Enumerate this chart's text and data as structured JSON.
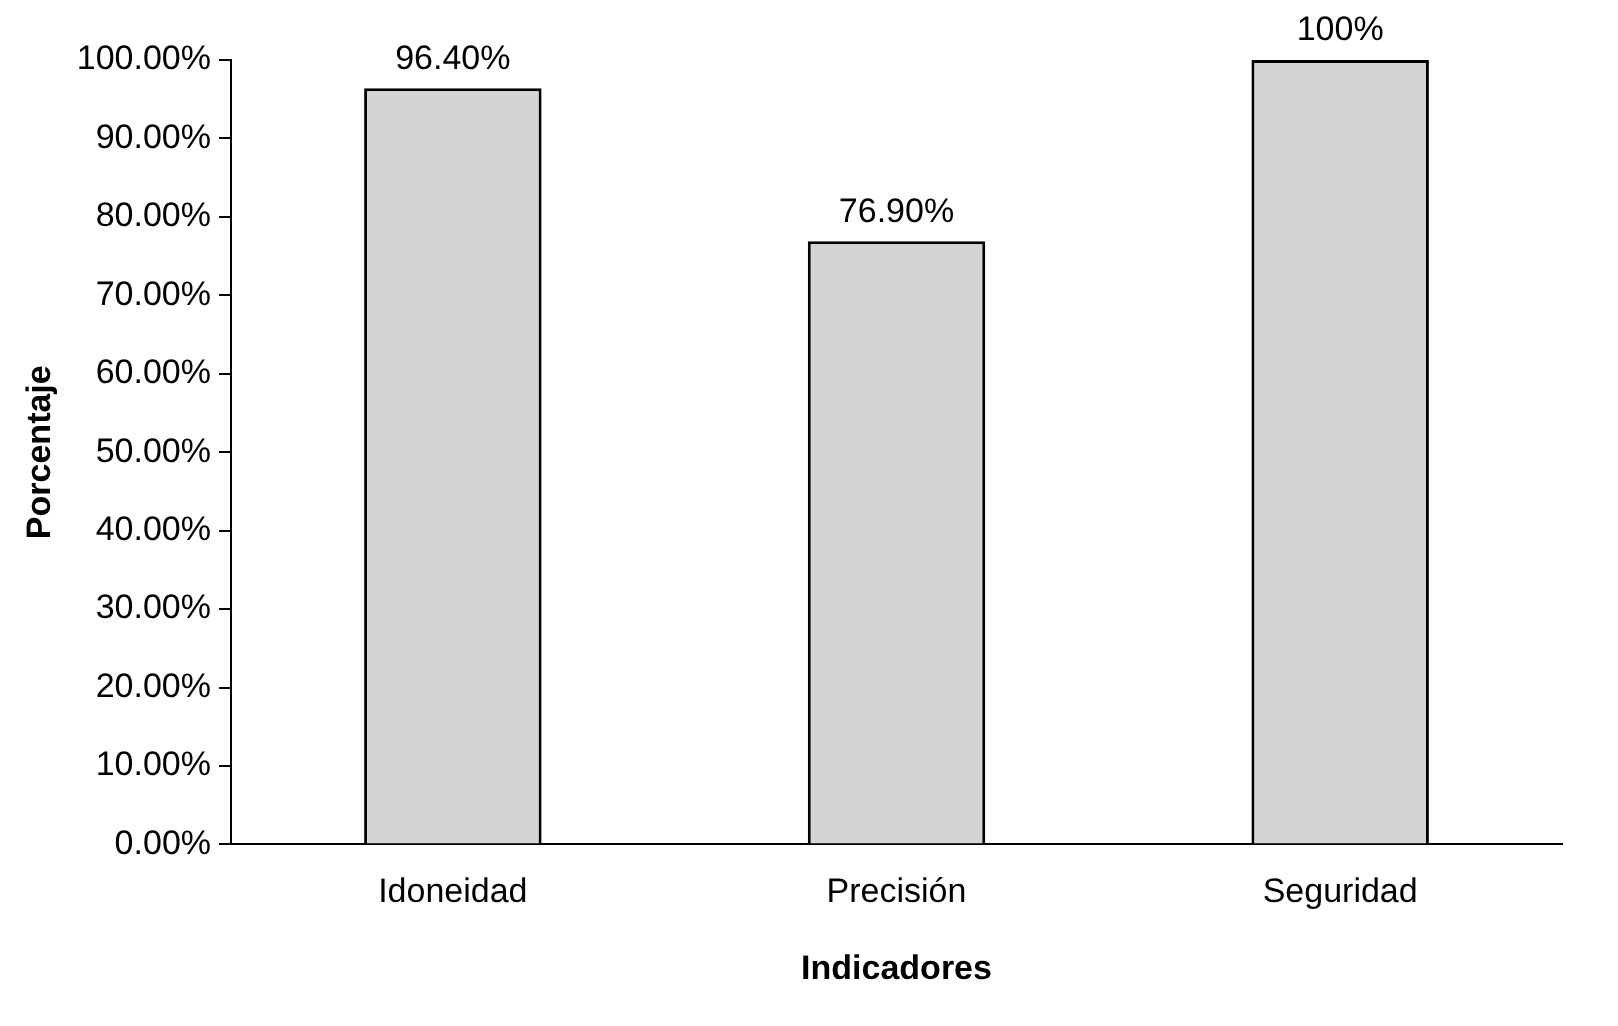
{
  "chart_data": {
    "type": "bar",
    "xlabel": "Indicadores",
    "ylabel": "Porcentaje",
    "categories": [
      "Idoneidad",
      "Precisión",
      "Seguridad"
    ],
    "values": [
      96.4,
      76.9,
      100
    ],
    "value_labels": [
      "96.40%",
      "76.90%",
      "100%"
    ],
    "color": "#d4d4d4",
    "ylim": [
      0,
      100
    ],
    "yticks": [
      {
        "value": 0,
        "label": "0.00%"
      },
      {
        "value": 10,
        "label": "10.00%"
      },
      {
        "value": 20,
        "label": "20.00%"
      },
      {
        "value": 30,
        "label": "30.00%"
      },
      {
        "value": 40,
        "label": "40.00%"
      },
      {
        "value": 50,
        "label": "50.00%"
      },
      {
        "value": 60,
        "label": "60.00%"
      },
      {
        "value": 70,
        "label": "70.00%"
      },
      {
        "value": 80,
        "label": "80.00%"
      },
      {
        "value": 90,
        "label": "90.00%"
      },
      {
        "value": 100,
        "label": "100.00%"
      }
    ],
    "grid": false,
    "legend": false
  }
}
